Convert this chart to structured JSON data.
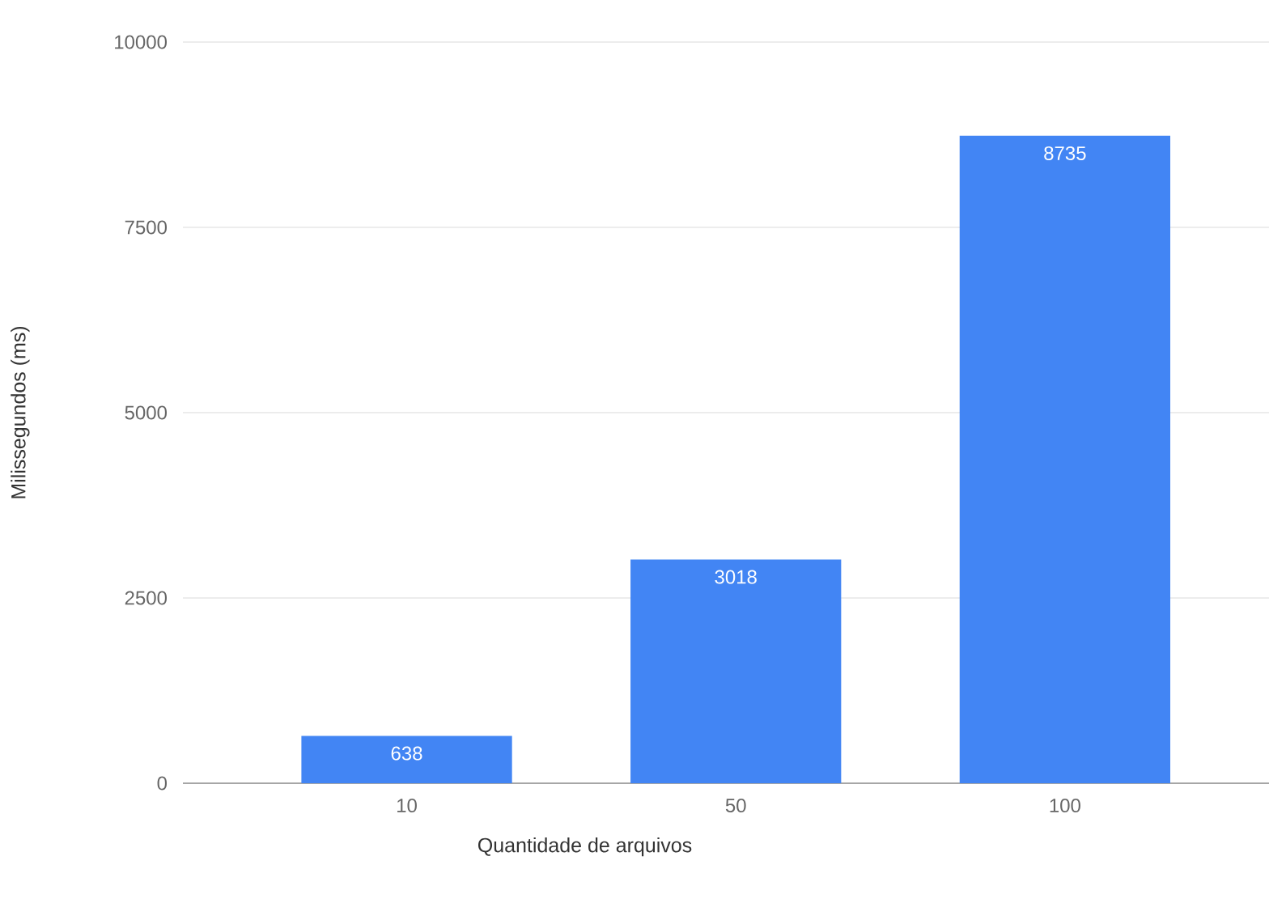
{
  "chart_data": {
    "type": "bar",
    "xlabel": "Quantidade de arquivos",
    "ylabel": "Milissegundos (ms)",
    "categories": [
      "10",
      "50",
      "100"
    ],
    "values": [
      638,
      3018,
      8735
    ],
    "color": "#4285f4",
    "ylim": [
      0,
      10000
    ],
    "yticks": [
      0,
      2500,
      5000,
      7500,
      10000
    ],
    "grid": "y",
    "data_labels": true
  }
}
